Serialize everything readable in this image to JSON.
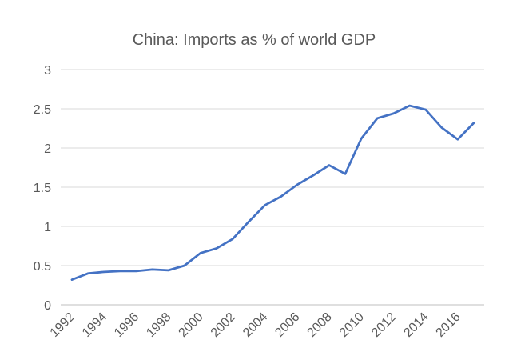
{
  "chart_data": {
    "type": "line",
    "title": "China: Imports as % of world GDP",
    "xlabel": "",
    "ylabel": "",
    "ylim": [
      0,
      3
    ],
    "y_ticks": [
      "0",
      "0.5",
      "1",
      "1.5",
      "2",
      "2.5",
      "3"
    ],
    "x_tick_labels": [
      "1992",
      "1994",
      "1996",
      "1998",
      "2000",
      "2002",
      "2004",
      "2006",
      "2008",
      "2010",
      "2012",
      "2014",
      "2016"
    ],
    "grid": true,
    "legend": "none",
    "x": [
      1992,
      1993,
      1994,
      1995,
      1996,
      1997,
      1998,
      1999,
      2000,
      2001,
      2002,
      2003,
      2004,
      2005,
      2006,
      2007,
      2008,
      2009,
      2010,
      2011,
      2012,
      2013,
      2014,
      2015,
      2016,
      2017
    ],
    "series": [
      {
        "color": "#4472c4",
        "values": [
          0.32,
          0.4,
          0.42,
          0.43,
          0.43,
          0.45,
          0.44,
          0.5,
          0.66,
          0.72,
          0.84,
          1.06,
          1.27,
          1.38,
          1.53,
          1.65,
          1.78,
          1.67,
          2.12,
          2.38,
          2.44,
          2.54,
          2.49,
          2.26,
          2.11,
          2.32
        ]
      }
    ]
  }
}
